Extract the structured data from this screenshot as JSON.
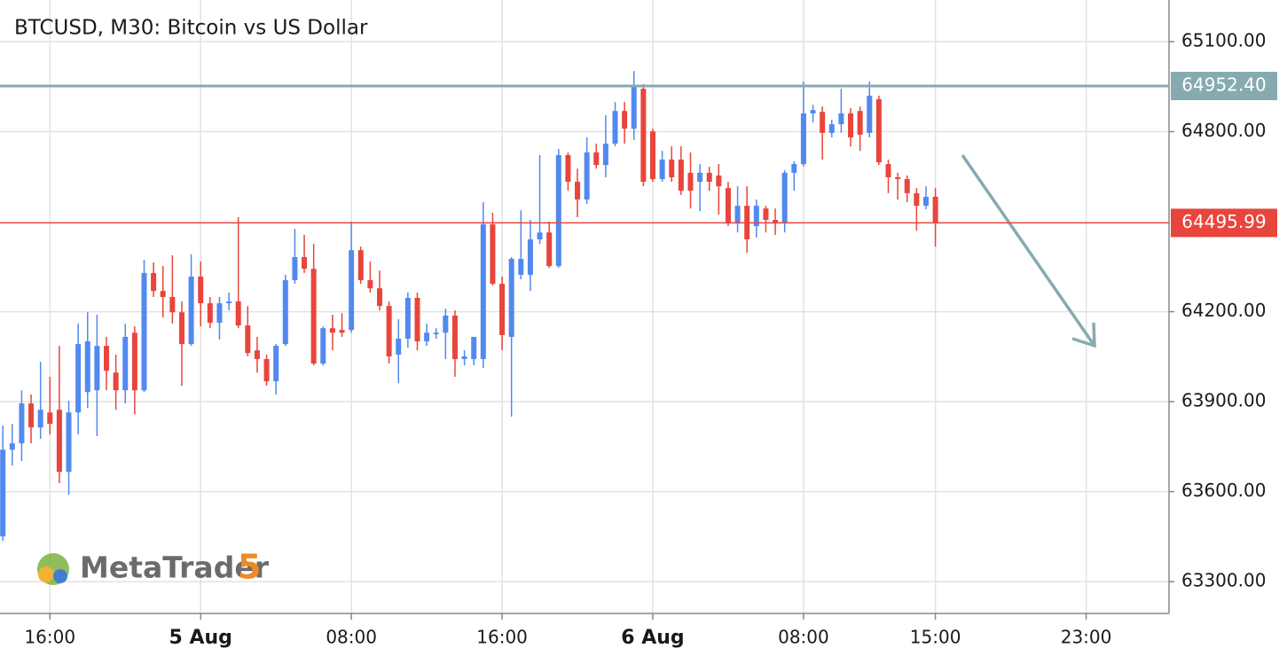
{
  "chart_data": {
    "type": "candlestick",
    "title": "BTCUSD, M30: Bitcoin vs US Dollar",
    "brand": "MetaTrader",
    "brand_version": "5",
    "up_color": "#5189ee",
    "down_color": "#e8453c",
    "grid": true,
    "x": [
      "13:30",
      "14:00",
      "14:30",
      "15:00",
      "15:30",
      "16:00",
      "16:30",
      "17:00",
      "17:30",
      "18:00",
      "18:30",
      "19:00",
      "19:30",
      "20:00",
      "20:30",
      "21:00",
      "21:30",
      "22:00",
      "22:30",
      "23:00",
      "23:30",
      "00:00",
      "00:30",
      "01:00",
      "01:30",
      "02:00",
      "02:30",
      "03:00",
      "03:30",
      "04:00",
      "04:30",
      "05:00",
      "05:30",
      "06:00",
      "06:30",
      "07:00",
      "07:30",
      "08:00",
      "08:30",
      "09:00",
      "09:30",
      "10:00",
      "10:30",
      "11:00",
      "11:30",
      "12:00",
      "12:30",
      "13:00",
      "13:30",
      "14:00",
      "14:30",
      "15:00",
      "15:30",
      "16:00",
      "16:30",
      "17:00",
      "17:30",
      "18:00",
      "18:30",
      "19:00",
      "19:30",
      "20:00",
      "20:30",
      "21:00",
      "21:30",
      "22:00",
      "22:30",
      "23:00",
      "23:30",
      "00:00",
      "00:30",
      "01:00",
      "01:30",
      "02:00",
      "02:30",
      "03:00",
      "03:30",
      "04:00",
      "04:30",
      "05:00",
      "05:30",
      "06:00",
      "06:30",
      "07:00",
      "07:30",
      "08:00",
      "08:30",
      "09:00",
      "09:30",
      "10:00",
      "10:30",
      "11:00",
      "11:30",
      "12:00",
      "12:30",
      "13:00",
      "13:30",
      "14:00",
      "14:30",
      "15:00"
    ],
    "open": [
      63451,
      63740,
      63761,
      63894,
      63814,
      63864,
      63873,
      63666,
      63864,
      63932,
      63938,
      64086,
      63997,
      63938,
      64130,
      63938,
      64329,
      64269,
      64249,
      64198,
      64092,
      64317,
      64228,
      64163,
      64228,
      64234,
      64154,
      64071,
      64042,
      63968,
      64092,
      64305,
      64382,
      64343,
      64027,
      64145,
      64139,
      64139,
      64405,
      64305,
      64278,
      64219,
      64057,
      64110,
      64246,
      64101,
      64125,
      64130,
      64187,
      64042,
      64042,
      64042,
      64491,
      64293,
      64116,
      64323,
      64323,
      64441,
      64464,
      64352,
      64722,
      64633,
      64574,
      64731,
      64689,
      64760,
      64869,
      64810,
      64943,
      64801,
      64642,
      64707,
      64707,
      64663,
      64633,
      64663,
      64654,
      64612,
      64494,
      64553,
      64485,
      64544,
      64506,
      64494,
      64663,
      64692,
      64861,
      64866,
      64796,
      64825,
      64861,
      64869,
      64796,
      64908,
      64692,
      64648,
      64642,
      64595,
      64553,
      64583
    ],
    "high": [
      63820,
      63826,
      63938,
      63924,
      64033,
      63983,
      64086,
      63903,
      64160,
      64198,
      64190,
      64116,
      64057,
      64160,
      64151,
      64373,
      64364,
      64352,
      64388,
      64234,
      64391,
      64367,
      64249,
      64249,
      64264,
      64515,
      64219,
      64116,
      64057,
      64092,
      64323,
      64476,
      64456,
      64426,
      64151,
      64190,
      64195,
      64500,
      64417,
      64367,
      64337,
      64234,
      64175,
      64264,
      64264,
      64160,
      64145,
      64210,
      64204,
      64071,
      64116,
      64565,
      64530,
      64317,
      64382,
      64538,
      64506,
      64722,
      64500,
      64742,
      64731,
      64677,
      64781,
      64760,
      64855,
      64899,
      64899,
      65002,
      64958,
      64810,
      64736,
      64751,
      64751,
      64731,
      64692,
      64683,
      64692,
      64633,
      64618,
      64618,
      64574,
      64553,
      64544,
      64671,
      64701,
      64967,
      64890,
      64884,
      64840,
      64943,
      64878,
      64884,
      64967,
      64920,
      64707,
      64663,
      64654,
      64612,
      64618,
      64612
    ],
    "low": [
      63436,
      63687,
      63702,
      63761,
      63776,
      63791,
      63628,
      63590,
      63791,
      63879,
      63785,
      63938,
      63873,
      63894,
      63858,
      63932,
      64249,
      64181,
      64160,
      63953,
      64086,
      64151,
      64145,
      64107,
      64204,
      64145,
      64051,
      63997,
      63953,
      63924,
      64086,
      64293,
      64329,
      64021,
      64021,
      64071,
      64116,
      64130,
      64293,
      64264,
      64204,
      64027,
      63962,
      64080,
      64071,
      64086,
      64110,
      64042,
      63983,
      64021,
      64021,
      64012,
      64287,
      64071,
      63850,
      64308,
      64269,
      64426,
      64346,
      64346,
      64603,
      64515,
      64559,
      64677,
      64648,
      64751,
      64760,
      64772,
      64618,
      64633,
      64633,
      64633,
      64589,
      64544,
      64535,
      64603,
      64524,
      64485,
      64464,
      64396,
      64447,
      64464,
      64456,
      64464,
      64603,
      64683,
      64831,
      64707,
      64781,
      64796,
      64751,
      64736,
      64781,
      64689,
      64595,
      64574,
      64565,
      64470,
      64541,
      64417
    ],
    "close": [
      63740,
      63761,
      63894,
      63814,
      63873,
      63826,
      63666,
      63864,
      64092,
      64101,
      64086,
      64003,
      63938,
      64116,
      63938,
      64329,
      64269,
      64249,
      64198,
      64092,
      64317,
      64228,
      64163,
      64228,
      64234,
      64154,
      64062,
      64042,
      63968,
      64086,
      64305,
      64382,
      64343,
      64027,
      64145,
      64130,
      64130,
      64405,
      64305,
      64278,
      64219,
      64051,
      64110,
      64246,
      64101,
      64130,
      64130,
      64187,
      64042,
      64051,
      64116,
      64491,
      64293,
      64122,
      64376,
      64376,
      64441,
      64464,
      64352,
      64722,
      64633,
      64574,
      64731,
      64689,
      64760,
      64869,
      64810,
      64955,
      64633,
      64642,
      64707,
      64648,
      64603,
      64603,
      64663,
      64633,
      64618,
      64494,
      64553,
      64441,
      64553,
      64506,
      64494,
      64663,
      64692,
      64861,
      64872,
      64796,
      64825,
      64861,
      64781,
      64790,
      64920,
      64698,
      64648,
      64642,
      64595,
      64553,
      64583,
      64494
    ],
    "levels": [
      {
        "value": 64952.4,
        "label": "64952.40",
        "color": "#86aab0"
      },
      {
        "value": 64495.99,
        "color": "#e8453c"
      }
    ],
    "xlim": [
      -0.3,
      123.8
    ],
    "ylim": [
      63194,
      65239
    ],
    "xticks": [
      {
        "value": 5,
        "label": "16:00"
      },
      {
        "value": 21,
        "label": "5 Aug"
      },
      {
        "value": 37,
        "label": "08:00"
      },
      {
        "value": 53,
        "label": "16:00"
      },
      {
        "value": 69,
        "label": "6 Aug"
      },
      {
        "value": 85,
        "label": "08:00"
      },
      {
        "value": 99,
        "label": "15:00"
      },
      {
        "value": 115,
        "label": "23:00"
      }
    ],
    "yticks": [
      {
        "value": 65100,
        "label": "65100.00"
      },
      {
        "value": 64800,
        "label": "64800.00"
      },
      {
        "value": 64200,
        "label": "64200.00"
      },
      {
        "value": 63900,
        "label": "63900.00"
      },
      {
        "value": 63600,
        "label": "63600.00"
      },
      {
        "value": 63300,
        "label": "63300.00"
      }
    ]
  }
}
